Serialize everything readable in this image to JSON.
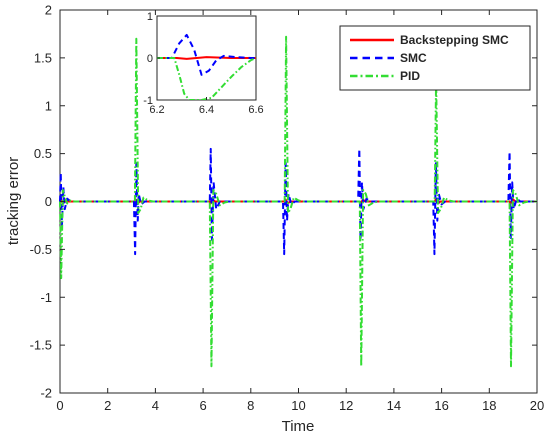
{
  "chart_data": {
    "type": "line",
    "xlabel": "Time",
    "ylabel": "tracking error",
    "xlim": [
      0,
      20
    ],
    "ylim": [
      -2,
      2
    ],
    "x_ticks": [
      0,
      2,
      4,
      6,
      8,
      10,
      12,
      14,
      16,
      18,
      20
    ],
    "y_ticks": [
      -2,
      -1.5,
      -1,
      -0.5,
      0,
      0.5,
      1,
      1.5,
      2
    ],
    "grid": false,
    "legend_position": "top-right",
    "series": [
      {
        "name": "Backstepping SMC",
        "color": "#ff0000",
        "style": "solid",
        "x": [
          0,
          0.05,
          0.1,
          0.2,
          3.14,
          3.18,
          3.25,
          3.35,
          6.28,
          6.32,
          6.4,
          6.5,
          9.42,
          9.46,
          9.55,
          9.65,
          12.57,
          12.61,
          12.7,
          12.8,
          15.71,
          15.75,
          15.85,
          15.95,
          18.85,
          18.89,
          19.0,
          19.1,
          20
        ],
        "y": [
          0,
          0.03,
          -0.02,
          0,
          0,
          0.02,
          -0.02,
          0,
          0,
          -0.02,
          0.02,
          0,
          0,
          0.02,
          -0.02,
          0,
          0,
          -0.02,
          0.02,
          0,
          0,
          0.02,
          -0.02,
          0,
          0,
          -0.02,
          0.02,
          0,
          0
        ]
      },
      {
        "name": "SMC",
        "color": "#0000ff",
        "style": "dashed",
        "x": [
          0,
          0.03,
          0.08,
          0.14,
          0.2,
          0.3,
          0.45,
          3.1,
          3.15,
          3.2,
          3.26,
          3.3,
          3.4,
          3.55,
          6.2,
          6.28,
          6.32,
          6.37,
          6.44,
          6.55,
          6.7,
          9.35,
          9.4,
          9.46,
          9.52,
          9.58,
          9.7,
          9.85,
          12.5,
          12.55,
          12.6,
          12.66,
          12.72,
          12.85,
          13.0,
          15.65,
          15.7,
          15.76,
          15.82,
          15.88,
          16.0,
          16.15,
          18.8,
          18.85,
          18.9,
          18.96,
          19.02,
          19.15,
          19.3,
          20
        ],
        "y": [
          0,
          0.3,
          -0.25,
          0.15,
          -0.08,
          0.03,
          0,
          0,
          -0.55,
          0.4,
          -0.2,
          0.08,
          -0.03,
          0,
          0,
          0,
          0.55,
          -0.4,
          0.2,
          -0.08,
          0,
          0,
          -0.55,
          0.4,
          -0.2,
          0.08,
          -0.03,
          0,
          0,
          0.55,
          -0.4,
          0.2,
          -0.08,
          0.03,
          0,
          0,
          -0.55,
          0.4,
          -0.2,
          0.08,
          -0.03,
          0,
          0,
          0.52,
          -0.38,
          0.2,
          -0.08,
          0.03,
          0,
          0
        ]
      },
      {
        "name": "PID",
        "color": "#33dd33",
        "style": "dashdot",
        "x": [
          0,
          0.05,
          0.12,
          0.2,
          0.3,
          0.45,
          0.6,
          3.14,
          3.2,
          3.28,
          3.38,
          3.5,
          3.7,
          3.9,
          6.28,
          6.35,
          6.43,
          6.55,
          6.7,
          6.9,
          7.1,
          9.42,
          9.48,
          9.56,
          9.66,
          9.8,
          10.0,
          10.2,
          12.57,
          12.63,
          12.71,
          12.82,
          12.95,
          13.15,
          13.35,
          15.71,
          15.77,
          15.85,
          15.96,
          16.1,
          16.3,
          16.5,
          18.85,
          18.91,
          18.99,
          19.1,
          19.25,
          19.45,
          19.65,
          20
        ],
        "y": [
          0,
          -0.8,
          0.12,
          0.05,
          -0.02,
          0.01,
          0,
          0,
          1.7,
          -0.12,
          -0.08,
          0.04,
          0.01,
          0,
          0,
          -1.72,
          0.12,
          0.08,
          -0.04,
          -0.01,
          0,
          0,
          1.72,
          -0.12,
          -0.08,
          0.04,
          0.01,
          0,
          0,
          -1.72,
          0.12,
          0.08,
          -0.04,
          -0.01,
          0,
          0,
          1.28,
          -0.12,
          -0.08,
          0.04,
          0.01,
          0,
          0,
          -1.72,
          0.12,
          0.08,
          -0.04,
          -0.01,
          0,
          0
        ]
      }
    ],
    "inset": {
      "xlim": [
        6.2,
        6.6
      ],
      "ylim": [
        -1,
        1
      ],
      "x_ticks": [
        6.2,
        6.4,
        6.6
      ],
      "y_ticks": [
        -1,
        0,
        1
      ],
      "series": [
        {
          "name": "Backstepping SMC",
          "x": [
            6.2,
            6.28,
            6.32,
            6.4,
            6.5,
            6.6
          ],
          "y": [
            0,
            0,
            -0.02,
            0.02,
            0,
            0
          ]
        },
        {
          "name": "SMC",
          "x": [
            6.2,
            6.26,
            6.29,
            6.32,
            6.35,
            6.38,
            6.41,
            6.44,
            6.47,
            6.52,
            6.58,
            6.6
          ],
          "y": [
            0,
            0,
            0.35,
            0.55,
            0.2,
            -0.4,
            -0.3,
            -0.05,
            0.05,
            0.02,
            0,
            0
          ]
        },
        {
          "name": "PID",
          "x": [
            6.2,
            6.27,
            6.29,
            6.31,
            6.33,
            6.35,
            6.38,
            6.42,
            6.46,
            6.5,
            6.54,
            6.58,
            6.6
          ],
          "y": [
            0,
            0,
            -0.4,
            -0.85,
            -1.0,
            -1.0,
            -1.0,
            -0.95,
            -0.7,
            -0.45,
            -0.22,
            -0.05,
            0
          ]
        }
      ]
    }
  }
}
